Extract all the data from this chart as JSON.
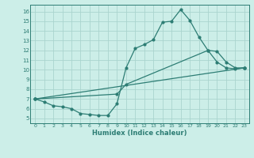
{
  "xlabel": "Humidex (Indice chaleur)",
  "bg_color": "#cceee8",
  "grid_color": "#aad4ce",
  "line_color": "#2d7d74",
  "spine_color": "#2d7d74",
  "xlim": [
    -0.5,
    23.5
  ],
  "ylim": [
    4.5,
    16.7
  ],
  "xticks": [
    0,
    1,
    2,
    3,
    4,
    5,
    6,
    7,
    8,
    9,
    10,
    11,
    12,
    13,
    14,
    15,
    16,
    17,
    18,
    19,
    20,
    21,
    22,
    23
  ],
  "yticks": [
    5,
    6,
    7,
    8,
    9,
    10,
    11,
    12,
    13,
    14,
    15,
    16
  ],
  "line1_x": [
    0,
    1,
    2,
    3,
    4,
    5,
    6,
    7,
    8,
    9,
    10,
    11,
    12,
    13,
    14,
    15,
    16,
    17,
    18,
    19,
    20,
    21,
    22,
    23
  ],
  "line1_y": [
    7.0,
    6.7,
    6.3,
    6.2,
    6.0,
    5.5,
    5.4,
    5.3,
    5.3,
    6.5,
    10.2,
    12.2,
    12.6,
    13.1,
    14.9,
    15.0,
    16.2,
    15.1,
    13.4,
    12.0,
    10.8,
    10.2,
    10.1,
    10.2
  ],
  "line2_x": [
    0,
    9,
    10,
    19,
    20,
    21,
    22,
    23
  ],
  "line2_y": [
    7.0,
    7.5,
    8.5,
    12.0,
    11.9,
    10.8,
    10.2,
    10.2
  ],
  "line3_x": [
    0,
    23
  ],
  "line3_y": [
    7.0,
    10.2
  ]
}
